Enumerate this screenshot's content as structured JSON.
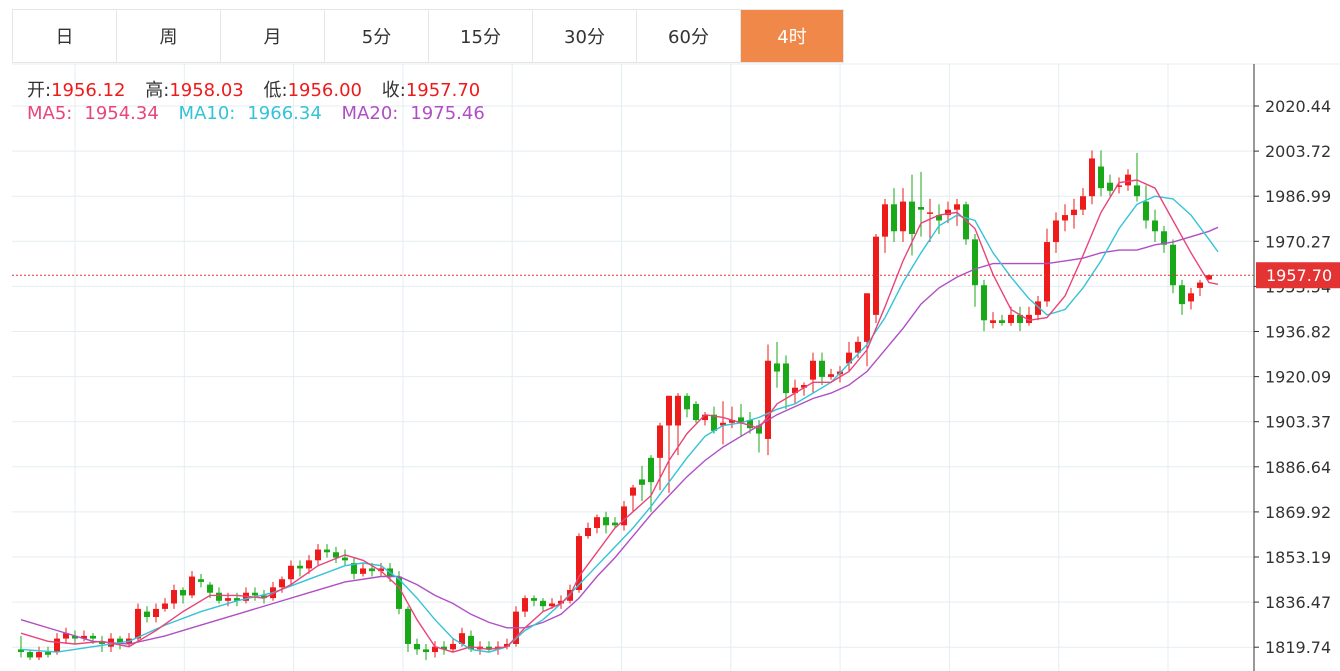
{
  "tabs": [
    {
      "label": "日",
      "active": false
    },
    {
      "label": "周",
      "active": false
    },
    {
      "label": "月",
      "active": false
    },
    {
      "label": "5分",
      "active": false
    },
    {
      "label": "15分",
      "active": false
    },
    {
      "label": "30分",
      "active": false
    },
    {
      "label": "60分",
      "active": false
    },
    {
      "label": "4时",
      "active": true
    }
  ],
  "colors": {
    "active_tab": "#f0884a",
    "up": "#ee1b1b",
    "down": "#18a818",
    "ma5": "#e8457b",
    "ma10": "#35c3d8",
    "ma20": "#b04fc5",
    "grid": "#e4eef2",
    "current_line": "#e33333"
  },
  "ohlc": {
    "open_label": "开:",
    "open": "1956.12",
    "high_label": "高:",
    "high": "1958.03",
    "low_label": "低:",
    "low": "1956.00",
    "close_label": "收:",
    "close": "1957.70"
  },
  "ma": {
    "ma5_label": "MA5:",
    "ma5": "1954.34",
    "ma10_label": "MA10:",
    "ma10": "1966.34",
    "ma20_label": "MA20:",
    "ma20": "1975.46"
  },
  "chart_data": {
    "type": "candlestick",
    "y_ticks": [
      "2020.44",
      "2003.72",
      "1986.99",
      "1970.27",
      "1953.54",
      "1936.82",
      "1920.09",
      "1903.37",
      "1886.64",
      "1869.92",
      "1853.19",
      "1836.47",
      "1819.74"
    ],
    "ylim": [
      1818,
      2037
    ],
    "current_price": "1957.70",
    "candles": [
      [
        1819,
        1818,
        1824,
        1816
      ],
      [
        1818,
        1816,
        1819,
        1815
      ],
      [
        1816,
        1818,
        1820,
        1815
      ],
      [
        1818,
        1817,
        1820,
        1816
      ],
      [
        1818,
        1823,
        1825,
        1817
      ],
      [
        1823,
        1825,
        1827,
        1821
      ],
      [
        1824,
        1823,
        1826,
        1821
      ],
      [
        1823,
        1824,
        1826,
        1822
      ],
      [
        1824,
        1823,
        1825,
        1821
      ],
      [
        1822,
        1821,
        1824,
        1818
      ],
      [
        1820,
        1823,
        1825,
        1818
      ],
      [
        1823,
        1821,
        1824,
        1819
      ],
      [
        1821,
        1823,
        1825,
        1820
      ],
      [
        1823,
        1834,
        1836,
        1822
      ],
      [
        1833,
        1831,
        1835,
        1829
      ],
      [
        1831,
        1834,
        1836,
        1829
      ],
      [
        1834,
        1836,
        1838,
        1833
      ],
      [
        1836,
        1841,
        1843,
        1834
      ],
      [
        1841,
        1839,
        1842,
        1836
      ],
      [
        1839,
        1846,
        1848,
        1838
      ],
      [
        1845,
        1844,
        1847,
        1842
      ],
      [
        1843,
        1840,
        1844,
        1838
      ],
      [
        1840,
        1837,
        1842,
        1836
      ],
      [
        1837,
        1838,
        1840,
        1835
      ],
      [
        1838,
        1837,
        1840,
        1835
      ],
      [
        1837,
        1840,
        1842,
        1836
      ],
      [
        1840,
        1839,
        1842,
        1837
      ],
      [
        1839,
        1838,
        1841,
        1836
      ],
      [
        1838,
        1842,
        1844,
        1837
      ],
      [
        1842,
        1845,
        1846,
        1840
      ],
      [
        1845,
        1850,
        1852,
        1843
      ],
      [
        1850,
        1849,
        1852,
        1846
      ],
      [
        1849,
        1852,
        1854,
        1847
      ],
      [
        1852,
        1856,
        1858,
        1850
      ],
      [
        1856,
        1855,
        1858,
        1853
      ],
      [
        1855,
        1853,
        1857,
        1851
      ],
      [
        1853,
        1852,
        1856,
        1850
      ],
      [
        1851,
        1847,
        1853,
        1845
      ],
      [
        1847,
        1849,
        1851,
        1846
      ],
      [
        1849,
        1848,
        1851,
        1846
      ],
      [
        1848,
        1849,
        1851,
        1846
      ],
      [
        1849,
        1846,
        1851,
        1844
      ],
      [
        1846,
        1834,
        1848,
        1832
      ],
      [
        1834,
        1821,
        1835,
        1818
      ],
      [
        1821,
        1819,
        1823,
        1817
      ],
      [
        1819,
        1818,
        1821,
        1815
      ],
      [
        1818,
        1820,
        1822,
        1816
      ],
      [
        1820,
        1819,
        1822,
        1817
      ],
      [
        1819,
        1821,
        1823,
        1818
      ],
      [
        1821,
        1825,
        1827,
        1820
      ],
      [
        1824,
        1819,
        1826,
        1818
      ],
      [
        1819,
        1820,
        1822,
        1817
      ],
      [
        1820,
        1819,
        1822,
        1818
      ],
      [
        1819,
        1820,
        1822,
        1817
      ],
      [
        1820,
        1821,
        1823,
        1819
      ],
      [
        1821,
        1833,
        1835,
        1820
      ],
      [
        1833,
        1838,
        1839,
        1831
      ],
      [
        1838,
        1837,
        1839,
        1835
      ],
      [
        1837,
        1835,
        1838,
        1833
      ],
      [
        1835,
        1836,
        1838,
        1834
      ],
      [
        1836,
        1837,
        1839,
        1834
      ],
      [
        1837,
        1841,
        1843,
        1836
      ],
      [
        1841,
        1861,
        1862,
        1840
      ],
      [
        1861,
        1864,
        1866,
        1860
      ],
      [
        1864,
        1868,
        1869,
        1862
      ],
      [
        1868,
        1865,
        1870,
        1862
      ],
      [
        1866,
        1865,
        1868,
        1864
      ],
      [
        1865,
        1872,
        1874,
        1863
      ],
      [
        1876,
        1879,
        1880,
        1870
      ],
      [
        1882,
        1880,
        1887,
        1874
      ],
      [
        1890,
        1881,
        1891,
        1870
      ],
      [
        1890,
        1902,
        1903,
        1878
      ],
      [
        1902,
        1913,
        1913,
        1877
      ],
      [
        1902,
        1913,
        1914,
        1891
      ],
      [
        1913,
        1908,
        1914,
        1905
      ],
      [
        1910,
        1904,
        1911,
        1903
      ],
      [
        1904,
        1906,
        1907,
        1902
      ],
      [
        1906,
        1900,
        1909,
        1899
      ],
      [
        1902,
        1903,
        1911,
        1895
      ],
      [
        1903,
        1904,
        1909,
        1901
      ],
      [
        1905,
        1903,
        1910,
        1898
      ],
      [
        1904,
        1901,
        1907,
        1899
      ],
      [
        1902,
        1899,
        1904,
        1892
      ],
      [
        1897,
        1926,
        1932,
        1891
      ],
      [
        1925,
        1922,
        1933,
        1916
      ],
      [
        1925,
        1914,
        1928,
        1908
      ],
      [
        1914,
        1916,
        1919,
        1910
      ],
      [
        1916,
        1917,
        1918,
        1913
      ],
      [
        1919,
        1926,
        1929,
        1914
      ],
      [
        1926,
        1920,
        1929,
        1917
      ],
      [
        1920,
        1921,
        1923,
        1919
      ],
      [
        1921,
        1922,
        1924,
        1918
      ],
      [
        1925,
        1929,
        1933,
        1922
      ],
      [
        1929,
        1933,
        1935,
        1927
      ],
      [
        1933,
        1951,
        1951,
        1924
      ],
      [
        1943,
        1972,
        1973,
        1940
      ],
      [
        1972,
        1984,
        1986,
        1966
      ],
      [
        1984,
        1974,
        1990,
        1970
      ],
      [
        1974,
        1985,
        1990,
        1970
      ],
      [
        1985,
        1973,
        1995,
        1965
      ],
      [
        1983,
        1982,
        1996,
        1972
      ],
      [
        1981,
        1981,
        1986,
        1970
      ],
      [
        1980,
        1978,
        1984,
        1973
      ],
      [
        1980,
        1982,
        1985,
        1977
      ],
      [
        1982,
        1984,
        1986,
        1976
      ],
      [
        1984,
        1971,
        1985,
        1969
      ],
      [
        1971,
        1954,
        1973,
        1946
      ],
      [
        1954,
        1941,
        1956,
        1937
      ],
      [
        1940,
        1941,
        1944,
        1938
      ],
      [
        1941,
        1940,
        1943,
        1939
      ],
      [
        1940,
        1943,
        1946,
        1939
      ],
      [
        1943,
        1940,
        1946,
        1937
      ],
      [
        1940,
        1943,
        1946,
        1939
      ],
      [
        1943,
        1948,
        1950,
        1941
      ],
      [
        1948,
        1970,
        1975,
        1946
      ],
      [
        1970,
        1978,
        1981,
        1966
      ],
      [
        1978,
        1980,
        1984,
        1974
      ],
      [
        1980,
        1982,
        1986,
        1975
      ],
      [
        1982,
        1987,
        1990,
        1980
      ],
      [
        1987,
        2001,
        2004,
        1984
      ],
      [
        1998,
        1990,
        2004,
        1987
      ],
      [
        1992,
        1989,
        1995,
        1987
      ],
      [
        1991,
        1991,
        1994,
        1988
      ],
      [
        1991,
        1995,
        1997,
        1989
      ],
      [
        1991,
        1987,
        2003,
        1985
      ],
      [
        1985,
        1978,
        1991,
        1975
      ],
      [
        1978,
        1974,
        1982,
        1970
      ],
      [
        1974,
        1969,
        1976,
        1966
      ],
      [
        1969,
        1954,
        1971,
        1951
      ],
      [
        1954,
        1947,
        1956,
        1943
      ],
      [
        1948,
        1951,
        1953,
        1945
      ],
      [
        1953,
        1955,
        1956,
        1950
      ],
      [
        1956.12,
        1957.7,
        1958.03,
        1956.0
      ]
    ],
    "ma5": [
      [
        0,
        1825
      ],
      [
        3,
        1822
      ],
      [
        6,
        1821
      ],
      [
        9,
        1822
      ],
      [
        12,
        1820
      ],
      [
        15,
        1826
      ],
      [
        18,
        1833
      ],
      [
        21,
        1839
      ],
      [
        24,
        1839
      ],
      [
        27,
        1838
      ],
      [
        30,
        1843
      ],
      [
        33,
        1850
      ],
      [
        36,
        1854
      ],
      [
        38,
        1852
      ],
      [
        40,
        1848
      ],
      [
        42,
        1842
      ],
      [
        44,
        1830
      ],
      [
        46,
        1820
      ],
      [
        48,
        1818
      ],
      [
        50,
        1820
      ],
      [
        52,
        1819
      ],
      [
        54,
        1820
      ],
      [
        56,
        1827
      ],
      [
        58,
        1833
      ],
      [
        60,
        1836
      ],
      [
        61,
        1839
      ],
      [
        62,
        1846
      ],
      [
        64,
        1855
      ],
      [
        66,
        1864
      ],
      [
        68,
        1870
      ],
      [
        70,
        1876
      ],
      [
        72,
        1889
      ],
      [
        74,
        1899
      ],
      [
        76,
        1906
      ],
      [
        78,
        1905
      ],
      [
        80,
        1903
      ],
      [
        82,
        1901
      ],
      [
        84,
        1910
      ],
      [
        86,
        1914
      ],
      [
        88,
        1918
      ],
      [
        90,
        1918
      ],
      [
        92,
        1922
      ],
      [
        94,
        1930
      ],
      [
        96,
        1946
      ],
      [
        98,
        1963
      ],
      [
        100,
        1977
      ],
      [
        102,
        1980
      ],
      [
        104,
        1981
      ],
      [
        106,
        1975
      ],
      [
        108,
        1958
      ],
      [
        110,
        1945
      ],
      [
        112,
        1941
      ],
      [
        114,
        1942
      ],
      [
        116,
        1950
      ],
      [
        118,
        1965
      ],
      [
        120,
        1981
      ],
      [
        122,
        1992
      ],
      [
        124,
        1993
      ],
      [
        126,
        1990
      ],
      [
        128,
        1978
      ],
      [
        130,
        1966
      ],
      [
        132,
        1955
      ],
      [
        133,
        1954.34
      ]
    ],
    "ma10": [
      [
        0,
        1819
      ],
      [
        4,
        1818
      ],
      [
        8,
        1820
      ],
      [
        12,
        1822
      ],
      [
        16,
        1828
      ],
      [
        20,
        1833
      ],
      [
        24,
        1837
      ],
      [
        28,
        1840
      ],
      [
        32,
        1845
      ],
      [
        36,
        1850
      ],
      [
        38,
        1851
      ],
      [
        40,
        1850
      ],
      [
        42,
        1845
      ],
      [
        44,
        1838
      ],
      [
        46,
        1830
      ],
      [
        48,
        1823
      ],
      [
        50,
        1819
      ],
      [
        52,
        1818
      ],
      [
        54,
        1820
      ],
      [
        56,
        1826
      ],
      [
        58,
        1830
      ],
      [
        60,
        1836
      ],
      [
        62,
        1843
      ],
      [
        64,
        1850
      ],
      [
        66,
        1857
      ],
      [
        68,
        1864
      ],
      [
        70,
        1872
      ],
      [
        72,
        1881
      ],
      [
        74,
        1890
      ],
      [
        76,
        1898
      ],
      [
        78,
        1902
      ],
      [
        80,
        1903
      ],
      [
        82,
        1905
      ],
      [
        84,
        1908
      ],
      [
        86,
        1910
      ],
      [
        88,
        1914
      ],
      [
        90,
        1918
      ],
      [
        92,
        1925
      ],
      [
        94,
        1932
      ],
      [
        96,
        1942
      ],
      [
        98,
        1955
      ],
      [
        100,
        1966
      ],
      [
        102,
        1976
      ],
      [
        104,
        1980
      ],
      [
        106,
        1978
      ],
      [
        108,
        1966
      ],
      [
        110,
        1957
      ],
      [
        112,
        1949
      ],
      [
        114,
        1943
      ],
      [
        116,
        1945
      ],
      [
        118,
        1953
      ],
      [
        120,
        1963
      ],
      [
        122,
        1975
      ],
      [
        124,
        1984
      ],
      [
        126,
        1987
      ],
      [
        128,
        1986
      ],
      [
        130,
        1980
      ],
      [
        132,
        1971
      ],
      [
        133,
        1966.34
      ]
    ],
    "ma20": [
      [
        0,
        1830
      ],
      [
        4,
        1826
      ],
      [
        8,
        1822
      ],
      [
        12,
        1821
      ],
      [
        16,
        1824
      ],
      [
        20,
        1828
      ],
      [
        24,
        1832
      ],
      [
        28,
        1836
      ],
      [
        32,
        1840
      ],
      [
        36,
        1844
      ],
      [
        40,
        1846
      ],
      [
        42,
        1846
      ],
      [
        44,
        1843
      ],
      [
        46,
        1839
      ],
      [
        48,
        1836
      ],
      [
        50,
        1832
      ],
      [
        52,
        1829
      ],
      [
        54,
        1827
      ],
      [
        56,
        1827
      ],
      [
        58,
        1829
      ],
      [
        60,
        1832
      ],
      [
        62,
        1838
      ],
      [
        64,
        1846
      ],
      [
        66,
        1853
      ],
      [
        68,
        1861
      ],
      [
        70,
        1869
      ],
      [
        72,
        1876
      ],
      [
        74,
        1883
      ],
      [
        76,
        1889
      ],
      [
        78,
        1894
      ],
      [
        80,
        1898
      ],
      [
        82,
        1902
      ],
      [
        84,
        1906
      ],
      [
        86,
        1909
      ],
      [
        88,
        1912
      ],
      [
        90,
        1914
      ],
      [
        92,
        1917
      ],
      [
        94,
        1922
      ],
      [
        96,
        1930
      ],
      [
        98,
        1938
      ],
      [
        100,
        1947
      ],
      [
        102,
        1953
      ],
      [
        104,
        1957
      ],
      [
        106,
        1960
      ],
      [
        108,
        1962
      ],
      [
        110,
        1962
      ],
      [
        112,
        1962
      ],
      [
        114,
        1962
      ],
      [
        116,
        1963
      ],
      [
        118,
        1964
      ],
      [
        120,
        1966
      ],
      [
        122,
        1967
      ],
      [
        124,
        1967
      ],
      [
        126,
        1969
      ],
      [
        128,
        1970
      ],
      [
        130,
        1972
      ],
      [
        132,
        1974
      ],
      [
        133,
        1975.46
      ]
    ]
  }
}
